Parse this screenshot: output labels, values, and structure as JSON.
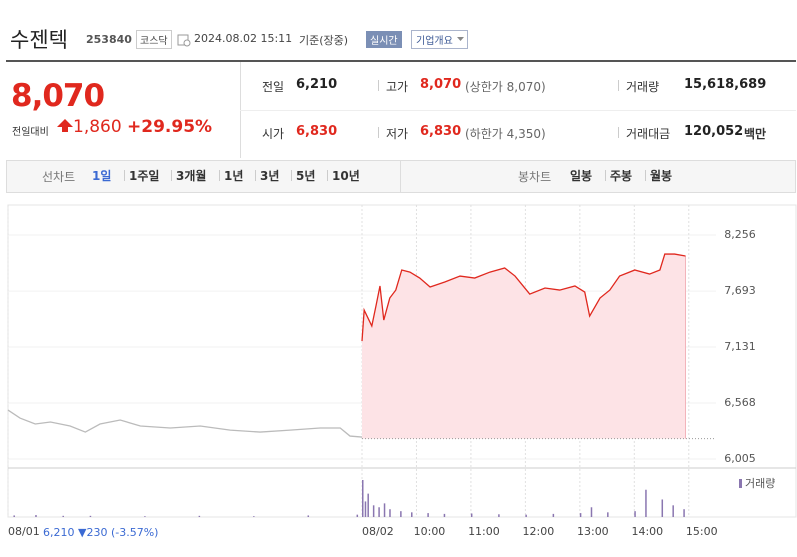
{
  "header": {
    "name": "수젠텍",
    "code": "253840",
    "market": "코스닥",
    "datetime": "2024.08.02 15:11",
    "basis": "기준(장중)",
    "realtime": "실시간",
    "company": "기업개요"
  },
  "quote": {
    "price": "8,070",
    "change_label": "전일대비",
    "change": "1,860",
    "rate": "+29.95%"
  },
  "stats": [
    {
      "label": "전일",
      "value": "6,210"
    },
    {
      "label": "고가",
      "value": "8,070",
      "note": "(상한가 8,070)"
    },
    {
      "label": "거래량",
      "value": "15,618,689"
    },
    {
      "label": "시가",
      "value": "6,830"
    },
    {
      "label": "저가",
      "value": "6,830",
      "note": "(하한가 4,350)"
    },
    {
      "label": "거래대금",
      "value": "120,052",
      "unit": "백만"
    }
  ],
  "tabs": {
    "line_label": "선차트",
    "periods": [
      "1일",
      "1주일",
      "3개월",
      "1년",
      "3년",
      "5년",
      "10년"
    ],
    "candle_label": "봉차트",
    "candle_periods": [
      "일봉",
      "주봉",
      "월봉"
    ]
  },
  "footer": {
    "prev_close": "6,210",
    "change": "▼230",
    "rate": "(-3.57%)"
  },
  "chart_data": {
    "type": "line",
    "xlim": [
      2.5,
      15.5
    ],
    "ylim": [
      5915,
      8558
    ],
    "xticks": [
      {
        "value": 2.5,
        "label": "08/01"
      },
      {
        "value": 9,
        "label": "08/02"
      },
      {
        "value": 10,
        "label": "10:00"
      },
      {
        "value": 11,
        "label": "11:00"
      },
      {
        "value": 12,
        "label": "12:00"
      },
      {
        "value": 13,
        "label": "13:00"
      },
      {
        "value": 14,
        "label": "14:00"
      },
      {
        "value": 15,
        "label": "15:00"
      }
    ],
    "yticks": [
      {
        "value": 6005,
        "label": "6,005"
      },
      {
        "value": 6568,
        "label": "6,568"
      },
      {
        "value": 7131,
        "label": "7,131"
      },
      {
        "value": 7693,
        "label": "7,693"
      },
      {
        "value": 8256,
        "label": "8,256"
      }
    ],
    "base": 6210,
    "series": [
      {
        "color": "#bbbbbb",
        "x": [
          2.5,
          2.72,
          3.0,
          3.28,
          3.64,
          3.92,
          4.19,
          4.56,
          4.93,
          5.48,
          6.03,
          6.58,
          7.13,
          7.68,
          8.23,
          8.6,
          8.78,
          9.0
        ],
        "values": [
          6497,
          6417,
          6357,
          6377,
          6337,
          6276,
          6357,
          6397,
          6337,
          6317,
          6337,
          6296,
          6276,
          6296,
          6317,
          6317,
          6236,
          6226
        ]
      },
      {
        "color": "#e0281e",
        "fill": "#fde3e6",
        "x": [
          9.0,
          9.04,
          9.11,
          9.18,
          9.26,
          9.33,
          9.4,
          9.51,
          9.62,
          9.73,
          9.88,
          10.06,
          10.25,
          10.52,
          10.8,
          11.07,
          11.35,
          11.62,
          11.81,
          12.08,
          12.36,
          12.63,
          12.91,
          13.09,
          13.18,
          13.37,
          13.55,
          13.73,
          14.01,
          14.28,
          14.47,
          14.56,
          14.74,
          14.94
        ],
        "values": [
          7191,
          7502,
          7422,
          7342,
          7553,
          7744,
          7402,
          7623,
          7703,
          7905,
          7884,
          7824,
          7734,
          7784,
          7844,
          7824,
          7884,
          7925,
          7844,
          7663,
          7724,
          7703,
          7744,
          7683,
          7442,
          7623,
          7703,
          7844,
          7905,
          7864,
          7905,
          8065,
          8065,
          8045
        ]
      }
    ],
    "volume": {
      "name": "거래량",
      "color": "#8a76b0",
      "x": [
        2.6,
        3,
        3.5,
        4,
        5,
        6,
        7,
        8,
        8.9,
        9.0,
        9.05,
        9.1,
        9.2,
        9.3,
        9.4,
        9.5,
        9.7,
        9.9,
        10.2,
        10.5,
        11,
        11.5,
        12,
        12.5,
        13,
        13.2,
        13.5,
        14,
        14.2,
        14.5,
        14.7,
        14.9
      ],
      "values": [
        4,
        5,
        3,
        3,
        2,
        3,
        2,
        4,
        6,
        95,
        40,
        60,
        30,
        25,
        35,
        20,
        15,
        12,
        10,
        8,
        9,
        7,
        6,
        8,
        10,
        25,
        12,
        15,
        70,
        45,
        30,
        20
      ]
    }
  }
}
